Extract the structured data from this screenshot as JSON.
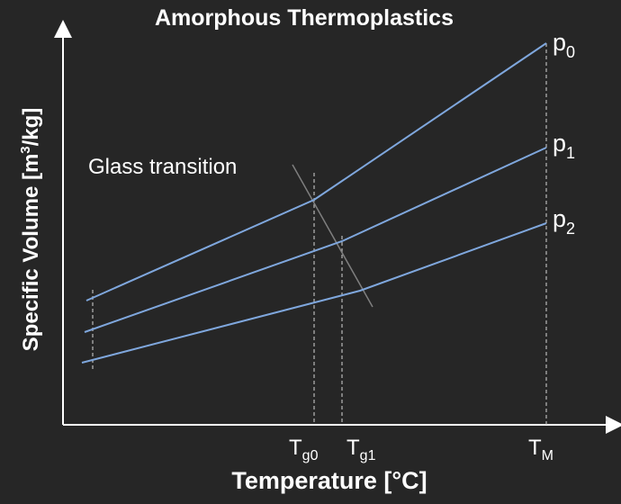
{
  "title": "Amorphous Thermoplastics",
  "x_axis_label": "Temperature [°C]",
  "y_axis_label": {
    "prefix": "Specific Volume [m",
    "superscript": "3",
    "suffix": "/kg]"
  },
  "annotation": "Glass transition",
  "ticks": [
    {
      "main": "T",
      "sub": "g0"
    },
    {
      "main": "T",
      "sub": "g1"
    },
    {
      "main": "T",
      "sub": "M"
    }
  ],
  "curves": [
    {
      "main": "p",
      "sub": "0"
    },
    {
      "main": "p",
      "sub": "1"
    },
    {
      "main": "p",
      "sub": "2"
    }
  ],
  "colors": {
    "background": "#262626",
    "text": "#ffffff",
    "curve": "#7fa7dd",
    "axis": "#ffffff",
    "guide": "#b8b8b8",
    "glass_line": "#7f7f7f"
  }
}
